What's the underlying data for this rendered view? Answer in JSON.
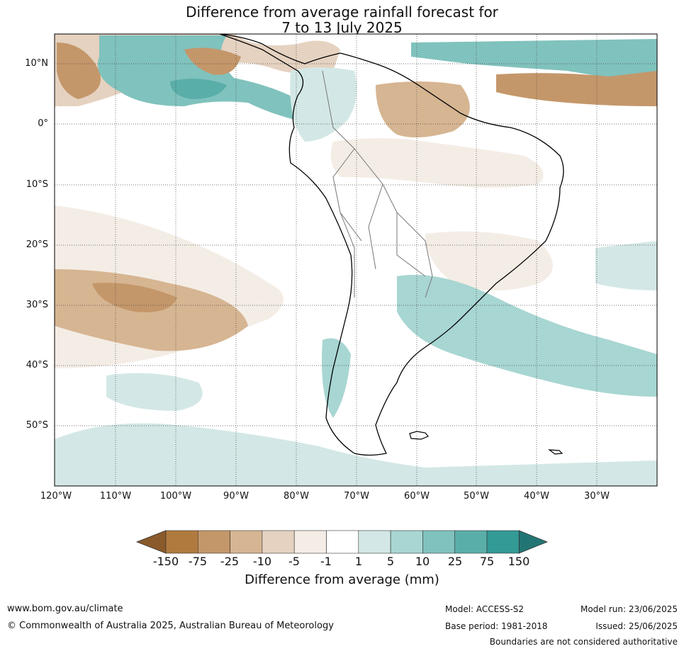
{
  "title": {
    "line1": "Difference from average rainfall forecast for",
    "line2": "7 to 13 July 2025"
  },
  "map": {
    "lon_labels": [
      "120°W",
      "110°W",
      "100°W",
      "90°W",
      "80°W",
      "70°W",
      "60°W",
      "50°W",
      "40°W",
      "30°W"
    ],
    "lat_labels": [
      "10°N",
      "0°",
      "10°S",
      "20°S",
      "30°S",
      "40°S",
      "50°S"
    ]
  },
  "colorbar": {
    "ticks": [
      "-150",
      "-75",
      "-25",
      "-10",
      "-5",
      "-1",
      "1",
      "5",
      "10",
      "25",
      "75",
      "150"
    ],
    "colors": [
      "#8b5a2b",
      "#b07a3e",
      "#c4976a",
      "#d6b592",
      "#e5d2c0",
      "#f4ede6",
      "#ffffff",
      "#d3e8e6",
      "#a8d6d2",
      "#80c2bd",
      "#5aaeaa",
      "#339a96",
      "#237573"
    ],
    "label": "Difference from average (mm)"
  },
  "footer": {
    "website": "www.bom.gov.au/climate",
    "copyright": "© Commonwealth of Australia 2025, Australian Bureau of Meteorology",
    "model": "Model: ACCESS-S2",
    "base_period": "Base period: 1981-2018",
    "model_run": "Model run: 23/06/2025",
    "issued": "Issued: 25/06/2025",
    "disclaimer": "Boundaries are not considered authoritative"
  }
}
